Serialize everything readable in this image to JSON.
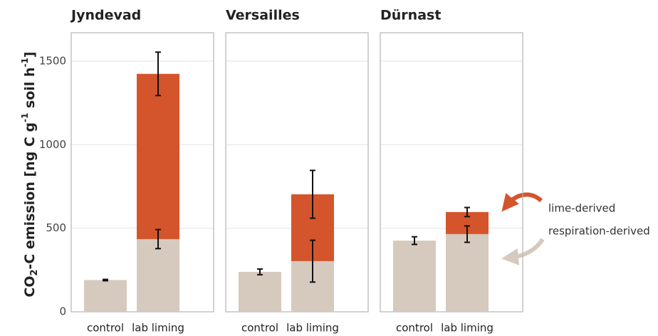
{
  "chart_data": {
    "type": "bar",
    "stacked": true,
    "ylabel": [
      "CO",
      "2",
      "-C emission [ng C g",
      "-1",
      " soil h",
      "-1",
      "]"
    ],
    "ylim": [
      0,
      1670
    ],
    "yticks": [
      0,
      500,
      1000,
      1500
    ],
    "grid": true,
    "series": [
      {
        "name": "respiration-derived",
        "color": "#d6c9be"
      },
      {
        "name": "lime-derived",
        "color": "#d4552b"
      }
    ],
    "annotations": [
      "lime-derived",
      "respiration-derived"
    ],
    "facets": [
      {
        "title": "Jyndevad",
        "categories": [
          "control",
          "lab liming"
        ],
        "values": [
          [
            190,
            435
          ],
          [
            null,
            989
          ]
        ],
        "errors": [
          [
            4,
            57
          ],
          [
            null,
            130
          ]
        ]
      },
      {
        "title": "Versailles",
        "categories": [
          "control",
          "lab liming"
        ],
        "values": [
          [
            239,
            303
          ],
          [
            null,
            400
          ]
        ],
        "errors": [
          [
            17,
            125
          ],
          [
            null,
            143
          ]
        ]
      },
      {
        "title": "Dürnast",
        "categories": [
          "control",
          "lab liming"
        ],
        "values": [
          [
            426,
            465
          ],
          [
            null,
            132
          ]
        ],
        "errors": [
          [
            23,
            49
          ],
          [
            null,
            27
          ]
        ]
      }
    ]
  }
}
